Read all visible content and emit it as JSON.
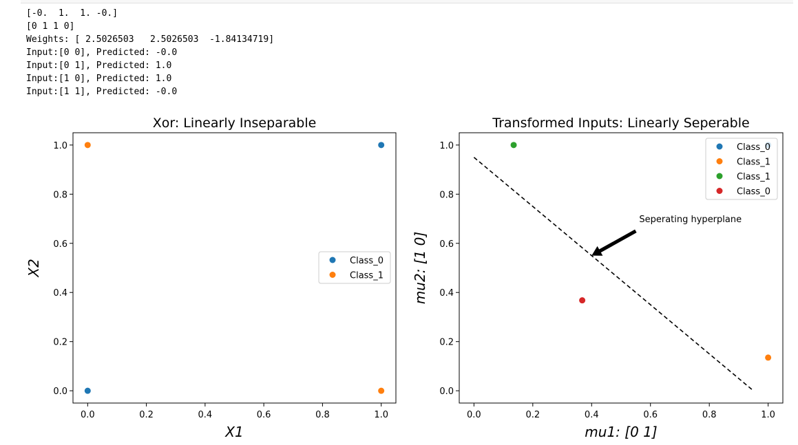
{
  "console": {
    "lines": [
      "[-0.  1.  1. -0.]",
      "[0 1 1 0]",
      "Weights: [ 2.5026503   2.5026503  -1.84134719]",
      "Input:[0 0], Predicted: -0.0",
      "Input:[0 1], Predicted: 1.0",
      "Input:[1 0], Predicted: 1.0",
      "Input:[1 1], Predicted: -0.0"
    ]
  },
  "chart_data": [
    {
      "type": "scatter",
      "title": "Xor: Linearly Inseparable",
      "xlabel": "X1",
      "ylabel": "X2",
      "xlim": [
        -0.05,
        1.05
      ],
      "ylim": [
        -0.05,
        1.05
      ],
      "xticks": [
        "0.0",
        "0.2",
        "0.4",
        "0.6",
        "0.8",
        "1.0"
      ],
      "yticks": [
        "0.0",
        "0.2",
        "0.4",
        "0.6",
        "0.8",
        "1.0"
      ],
      "grid": false,
      "legend_position": "center-right",
      "series": [
        {
          "name": "Class_0",
          "color": "#1f77b4",
          "points": [
            [
              0,
              0
            ],
            [
              1,
              1
            ]
          ]
        },
        {
          "name": "Class_1",
          "color": "#ff7f0e",
          "points": [
            [
              0,
              1
            ],
            [
              1,
              0
            ]
          ]
        }
      ]
    },
    {
      "type": "scatter",
      "title": "Transformed Inputs: Linearly Seperable",
      "xlabel": "mu1: [0 1]",
      "ylabel": "mu2: [1 0]",
      "xlim": [
        -0.05,
        1.05
      ],
      "ylim": [
        -0.05,
        1.05
      ],
      "xticks": [
        "0.0",
        "0.2",
        "0.4",
        "0.6",
        "0.8",
        "1.0"
      ],
      "yticks": [
        "0.0",
        "0.2",
        "0.4",
        "0.6",
        "0.8",
        "1.0"
      ],
      "grid": false,
      "legend_position": "top-right",
      "series": [
        {
          "name": "Class_0",
          "color": "#1f77b4",
          "points": [
            [
              1,
              1
            ]
          ]
        },
        {
          "name": "Class_1",
          "color": "#ff7f0e",
          "points": [
            [
              1,
              0.135
            ]
          ]
        },
        {
          "name": "Class_1",
          "color": "#2ca02c",
          "points": [
            [
              0.135,
              1
            ]
          ]
        },
        {
          "name": "Class_0",
          "color": "#d62728",
          "points": [
            [
              0.368,
              0.368
            ]
          ]
        }
      ],
      "line": {
        "x": [
          0,
          0.95
        ],
        "y": [
          0.95,
          0
        ],
        "style": "dashed",
        "color": "#000000"
      },
      "annotation": {
        "text": "Seperating hyperplane",
        "arrow_from": [
          0.55,
          0.65
        ],
        "arrow_to": [
          0.4,
          0.55
        ]
      }
    }
  ]
}
